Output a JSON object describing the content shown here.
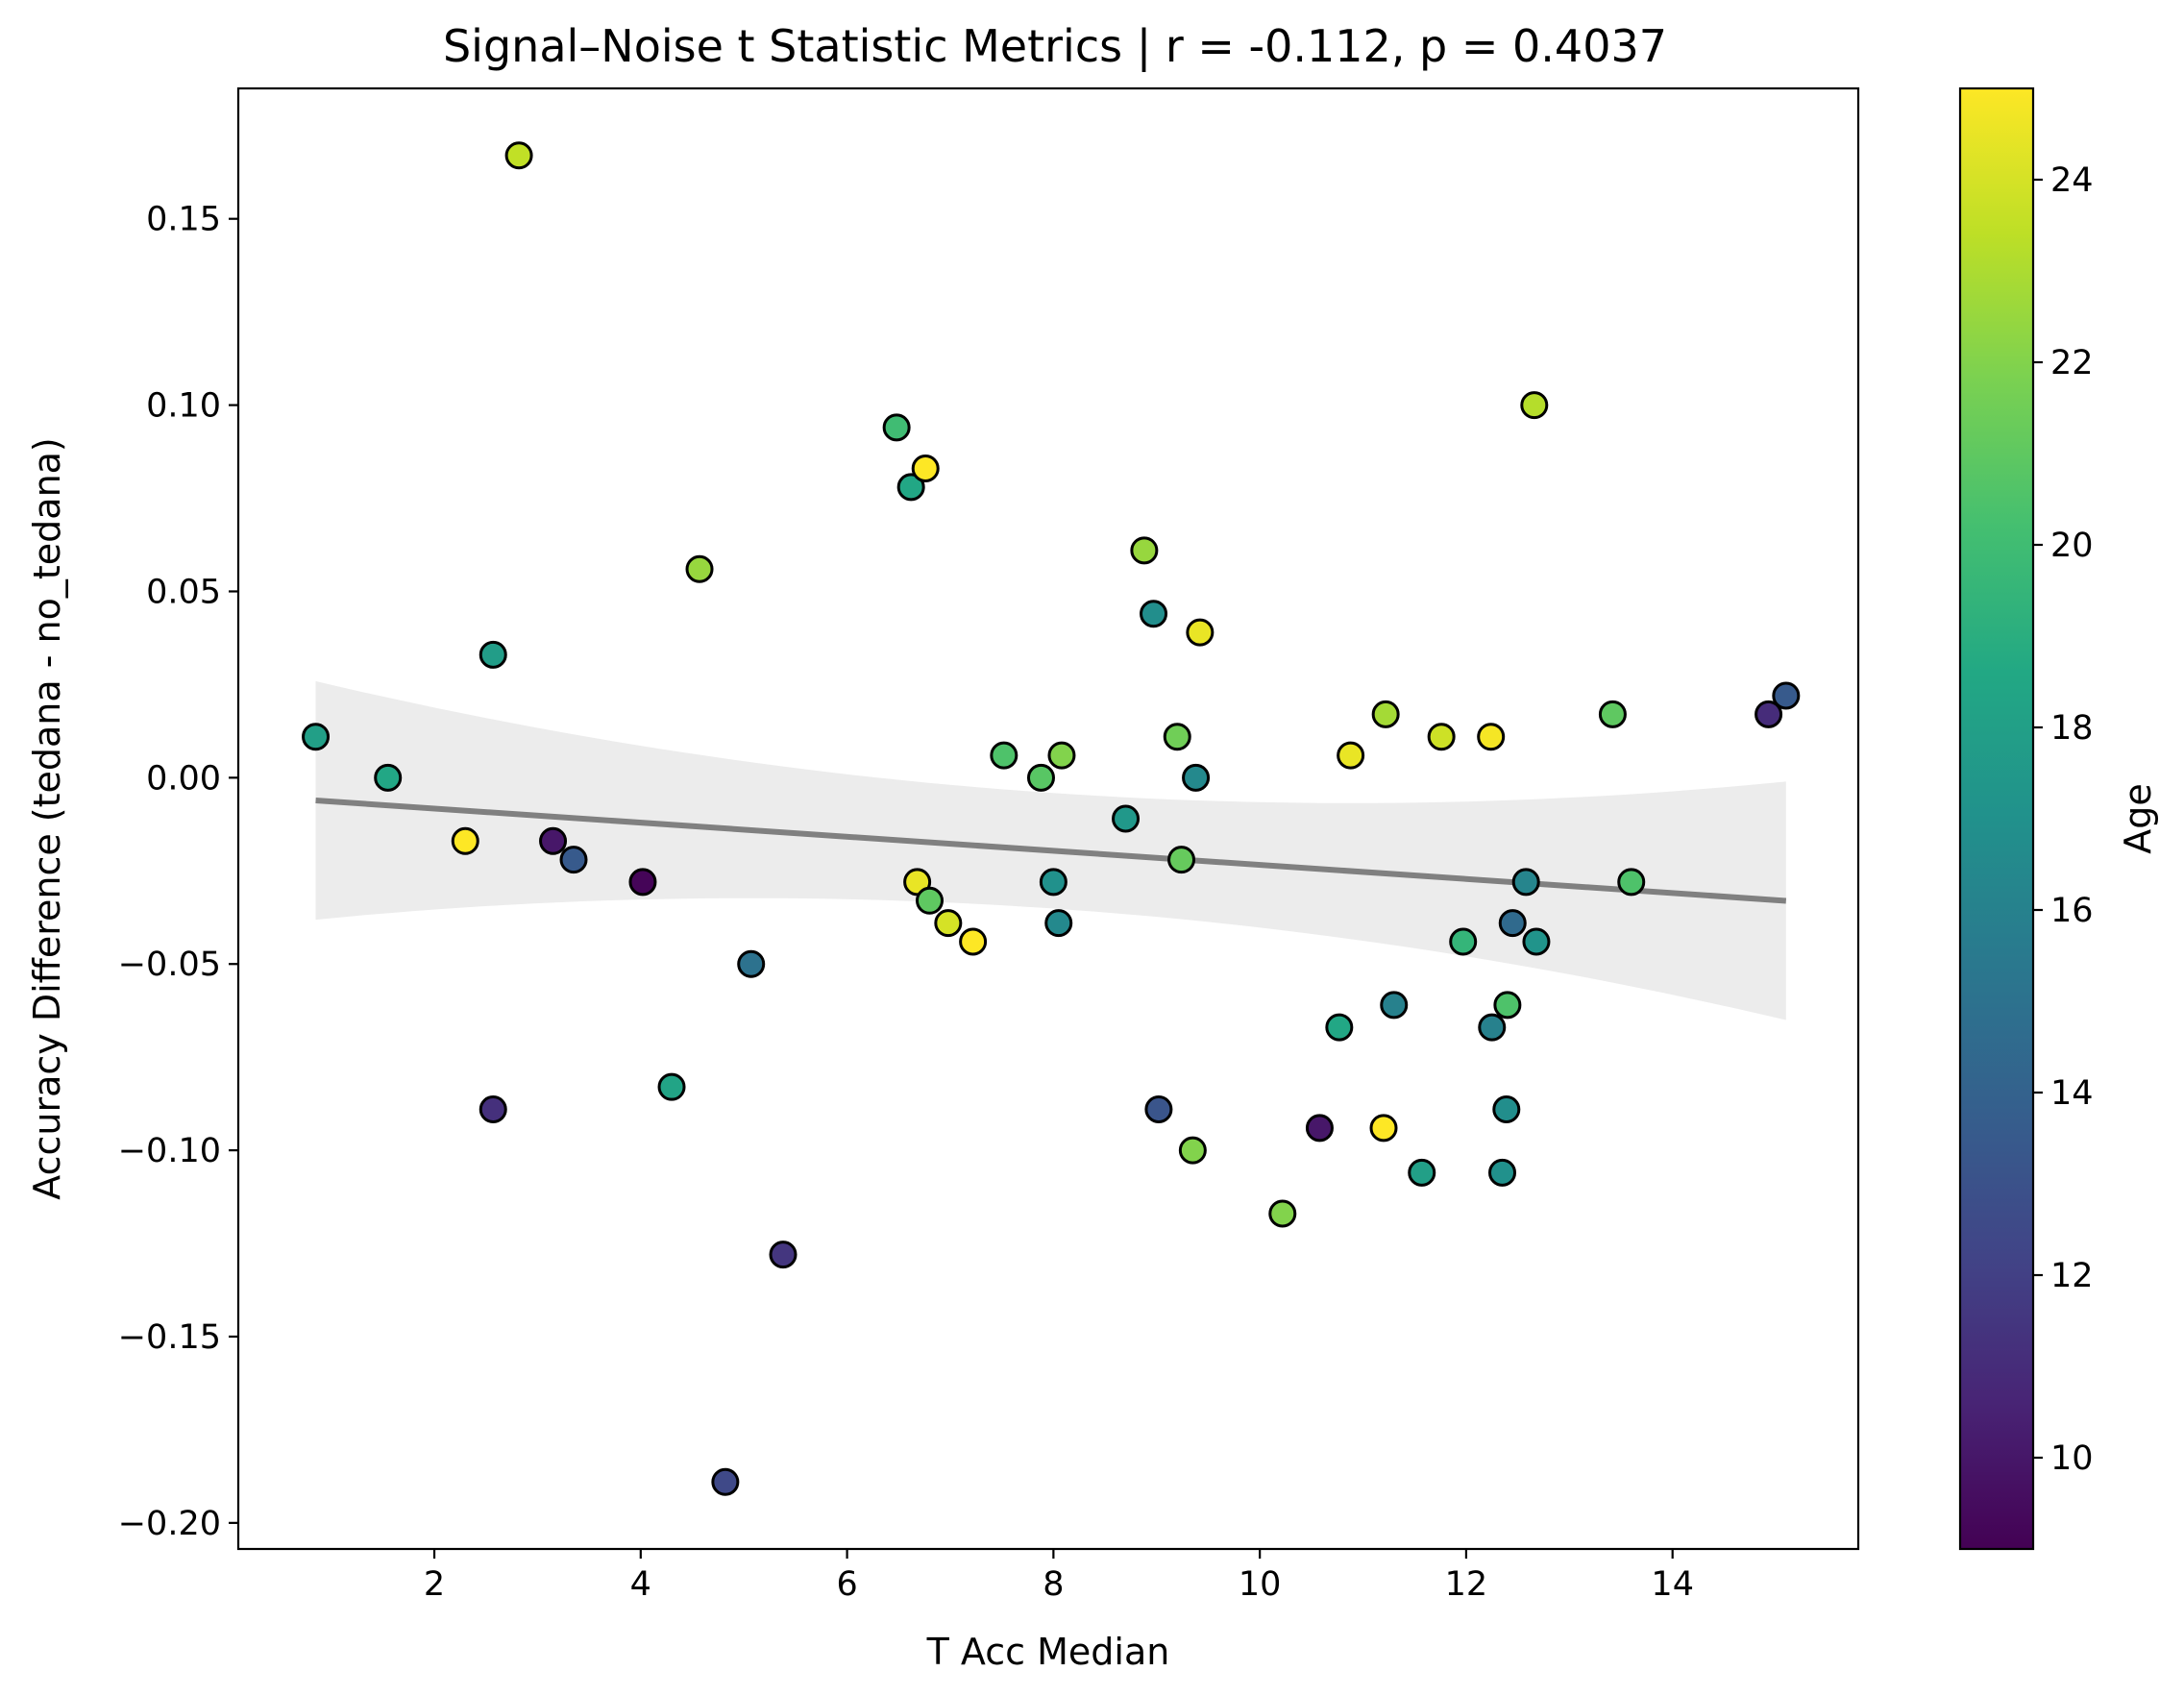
{
  "chart_data": {
    "type": "scatter",
    "title": "Signal–Noise t Statistic Metrics | r = -0.112, p = 0.4037",
    "xlabel": "T Acc Median",
    "ylabel": "Accuracy Difference (tedana - no_tedana)",
    "xlim": [
      0.1,
      15.8
    ],
    "ylim": [
      -0.207,
      0.185
    ],
    "x_ticks": [
      2,
      4,
      6,
      8,
      10,
      12,
      14
    ],
    "x_tick_labels": [
      "2",
      "4",
      "6",
      "8",
      "10",
      "12",
      "14"
    ],
    "y_ticks": [
      -0.2,
      -0.15,
      -0.1,
      -0.05,
      0.0,
      0.05,
      0.1,
      0.15
    ],
    "y_tick_labels": [
      "−0.20",
      "−0.15",
      "−0.10",
      "−0.05",
      "0.00",
      "0.05",
      "0.10",
      "0.15"
    ],
    "grid": false,
    "colorbar": {
      "label": "Age",
      "colormap": "viridis",
      "range": [
        9,
        25
      ],
      "ticks": [
        10,
        12,
        14,
        16,
        18,
        20,
        22,
        24
      ],
      "tick_labels": [
        "10",
        "12",
        "14",
        "16",
        "18",
        "20",
        "22",
        "24"
      ]
    },
    "regression": {
      "slope": -0.00189,
      "intercept": -0.0045,
      "x_range": [
        0.85,
        15.1
      ],
      "line_color": "#808080",
      "ci_color": "#ececec",
      "ci_half_width_at_ends": 0.032,
      "ci_half_width_at_center": 0.0155
    },
    "points": [
      {
        "x": 0.85,
        "y": 0.011,
        "age": 18.0
      },
      {
        "x": 1.55,
        "y": 0.0,
        "age": 18.5
      },
      {
        "x": 2.3,
        "y": -0.017,
        "age": 25.0
      },
      {
        "x": 2.57,
        "y": 0.033,
        "age": 17.8
      },
      {
        "x": 2.57,
        "y": -0.089,
        "age": 11.2
      },
      {
        "x": 2.82,
        "y": 0.167,
        "age": 23.5
      },
      {
        "x": 3.15,
        "y": -0.017,
        "age": 10.0
      },
      {
        "x": 3.35,
        "y": -0.022,
        "age": 13.5
      },
      {
        "x": 4.02,
        "y": -0.028,
        "age": 9.2
      },
      {
        "x": 4.3,
        "y": -0.083,
        "age": 18.3
      },
      {
        "x": 4.57,
        "y": 0.056,
        "age": 22.5
      },
      {
        "x": 4.82,
        "y": -0.189,
        "age": 12.5
      },
      {
        "x": 5.07,
        "y": -0.05,
        "age": 15.0
      },
      {
        "x": 5.38,
        "y": -0.128,
        "age": 11.5
      },
      {
        "x": 6.48,
        "y": 0.094,
        "age": 20.0
      },
      {
        "x": 6.62,
        "y": 0.078,
        "age": 18.5
      },
      {
        "x": 6.68,
        "y": -0.028,
        "age": 24.5
      },
      {
        "x": 6.76,
        "y": 0.083,
        "age": 25.0
      },
      {
        "x": 6.8,
        "y": -0.033,
        "age": 21.0
      },
      {
        "x": 6.98,
        "y": -0.039,
        "age": 24.0
      },
      {
        "x": 7.22,
        "y": -0.044,
        "age": 25.0
      },
      {
        "x": 7.52,
        "y": 0.006,
        "age": 20.5
      },
      {
        "x": 7.88,
        "y": 0.0,
        "age": 20.8
      },
      {
        "x": 8.0,
        "y": -0.028,
        "age": 17.0
      },
      {
        "x": 8.05,
        "y": -0.039,
        "age": 16.5
      },
      {
        "x": 8.08,
        "y": 0.006,
        "age": 22.0
      },
      {
        "x": 8.7,
        "y": -0.011,
        "age": 17.5
      },
      {
        "x": 8.88,
        "y": 0.061,
        "age": 22.5
      },
      {
        "x": 8.97,
        "y": 0.044,
        "age": 16.8
      },
      {
        "x": 9.02,
        "y": -0.089,
        "age": 13.2
      },
      {
        "x": 9.2,
        "y": 0.011,
        "age": 21.5
      },
      {
        "x": 9.24,
        "y": -0.022,
        "age": 21.2
      },
      {
        "x": 9.35,
        "y": -0.1,
        "age": 22.0
      },
      {
        "x": 9.38,
        "y": 0.0,
        "age": 16.5
      },
      {
        "x": 9.42,
        "y": 0.039,
        "age": 24.5
      },
      {
        "x": 10.22,
        "y": -0.117,
        "age": 22.0
      },
      {
        "x": 10.58,
        "y": -0.094,
        "age": 10.0
      },
      {
        "x": 10.77,
        "y": -0.067,
        "age": 18.5
      },
      {
        "x": 10.88,
        "y": 0.006,
        "age": 24.5
      },
      {
        "x": 11.2,
        "y": -0.094,
        "age": 25.0
      },
      {
        "x": 11.22,
        "y": 0.017,
        "age": 22.8
      },
      {
        "x": 11.3,
        "y": -0.061,
        "age": 16.0
      },
      {
        "x": 11.57,
        "y": -0.106,
        "age": 18.0
      },
      {
        "x": 11.76,
        "y": 0.011,
        "age": 23.8
      },
      {
        "x": 11.97,
        "y": -0.044,
        "age": 19.5
      },
      {
        "x": 12.24,
        "y": 0.011,
        "age": 24.8
      },
      {
        "x": 12.25,
        "y": -0.067,
        "age": 16.0
      },
      {
        "x": 12.35,
        "y": -0.106,
        "age": 17.0
      },
      {
        "x": 12.39,
        "y": -0.089,
        "age": 16.8
      },
      {
        "x": 12.4,
        "y": -0.061,
        "age": 20.5
      },
      {
        "x": 12.45,
        "y": -0.039,
        "age": 14.5
      },
      {
        "x": 12.58,
        "y": -0.028,
        "age": 16.2
      },
      {
        "x": 12.66,
        "y": 0.1,
        "age": 23.2
      },
      {
        "x": 12.68,
        "y": -0.044,
        "age": 17.2
      },
      {
        "x": 13.42,
        "y": 0.017,
        "age": 21.0
      },
      {
        "x": 13.6,
        "y": -0.028,
        "age": 20.5
      },
      {
        "x": 14.93,
        "y": 0.017,
        "age": 11.0
      },
      {
        "x": 15.1,
        "y": 0.022,
        "age": 13.5
      }
    ]
  }
}
